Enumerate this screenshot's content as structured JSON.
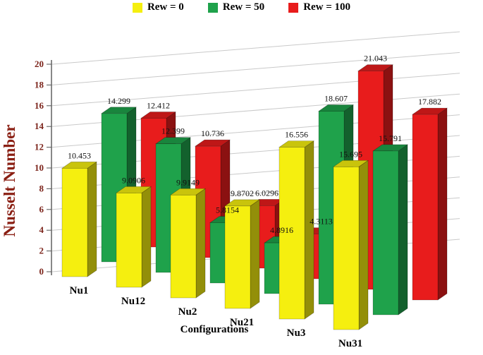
{
  "chart_data": {
    "type": "bar",
    "subtype": "3d-grouped-column",
    "title": "",
    "xlabel": "Configurations",
    "ylabel": "Nusselt Number",
    "ylim": [
      0,
      20
    ],
    "ytick_step": 2,
    "yticks": [
      0,
      2,
      4,
      6,
      8,
      10,
      12,
      14,
      16,
      18,
      20
    ],
    "grid": true,
    "legend_position": "top",
    "categories": [
      "Nu1",
      "Nu12",
      "Nu2",
      "Nu21",
      "Nu3",
      "Nu31"
    ],
    "series": [
      {
        "name": "Rew = 0",
        "color": "#f5ef0f",
        "values": [
          10.453,
          9.0906,
          9.9149,
          9.8702,
          16.556,
          15.695
        ]
      },
      {
        "name": "Rew = 50",
        "color": "#1fa24b",
        "values": [
          14.299,
          12.399,
          5.8154,
          4.8916,
          18.607,
          15.791
        ]
      },
      {
        "name": "Rew = 100",
        "color": "#e81c1c",
        "values": [
          12.412,
          10.736,
          6.0296,
          4.3113,
          21.043,
          17.882
        ]
      }
    ]
  },
  "colors": {
    "grid": "#c9c9c9",
    "axis_line": "#555555",
    "tick_text": "#7c241b",
    "ylabel_text": "#8a1f13",
    "data_label_text": "#111111"
  }
}
